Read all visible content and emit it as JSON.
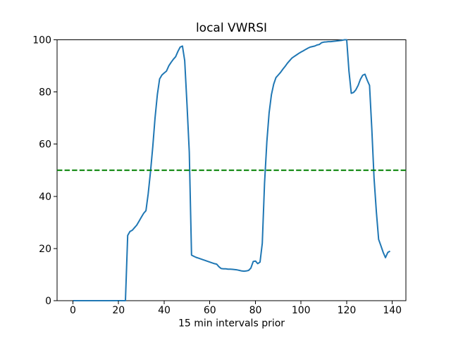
{
  "figure": {
    "title": "local VWRSI",
    "xlabel": "15 min intervals prior"
  },
  "chart_data": {
    "type": "line",
    "title": "local VWRSI",
    "xlabel": "15 min intervals prior",
    "ylabel": "",
    "xlim": [
      -6.95,
      145.95
    ],
    "ylim": [
      0,
      100
    ],
    "xticks": [
      0,
      20,
      40,
      60,
      80,
      100,
      120,
      140
    ],
    "yticks": [
      0,
      20,
      40,
      60,
      80,
      100
    ],
    "grid": false,
    "legend": false,
    "background": "#ffffff",
    "spine_color": "#000000",
    "series": [
      {
        "name": "local VWRSI",
        "color": "#1f77b4",
        "line_width": 2,
        "x_start": 0,
        "x_step": 1,
        "values": [
          0,
          0,
          0,
          0,
          0,
          0,
          0,
          0,
          0,
          0,
          0,
          0,
          0,
          0,
          0,
          0,
          0,
          0,
          0,
          0,
          0,
          0,
          0,
          0,
          25,
          26.5,
          27,
          28,
          29,
          30.5,
          32,
          33.5,
          34.5,
          41,
          49.5,
          59,
          70,
          79,
          85,
          86.5,
          87.3,
          88,
          90,
          91.3,
          92.5,
          93.5,
          95.5,
          97.2,
          97.6,
          92,
          75,
          57,
          17.5,
          17,
          16.6,
          16.3,
          16,
          15.7,
          15.4,
          15.1,
          14.8,
          14.5,
          14.2,
          14,
          13,
          12.3,
          12.2,
          12.2,
          12.1,
          12.1,
          12,
          11.9,
          11.8,
          11.6,
          11.4,
          11.3,
          11.4,
          11.6,
          12.5,
          15,
          15.2,
          14.2,
          14.8,
          22,
          45,
          61,
          72,
          79,
          83,
          85.5,
          86.5,
          87.5,
          88.7,
          89.8,
          91,
          92,
          93,
          93.6,
          94.2,
          94.8,
          95.3,
          95.8,
          96.3,
          96.8,
          97.2,
          97.4,
          97.6,
          98,
          98.2,
          98.9,
          99.1,
          99.2,
          99.3,
          99.3,
          99.4,
          99.5,
          99.6,
          99.7,
          99.8,
          100,
          100,
          88,
          79.5,
          79.8,
          80.8,
          82.5,
          84.8,
          86.4,
          86.8,
          84.5,
          82.5,
          66,
          47,
          34,
          23.5,
          21,
          18.5,
          16.5,
          18.5,
          19
        ]
      }
    ],
    "threshold_line": {
      "y": 50,
      "color": "#008000",
      "style": "dashed",
      "line_width": 2
    }
  }
}
